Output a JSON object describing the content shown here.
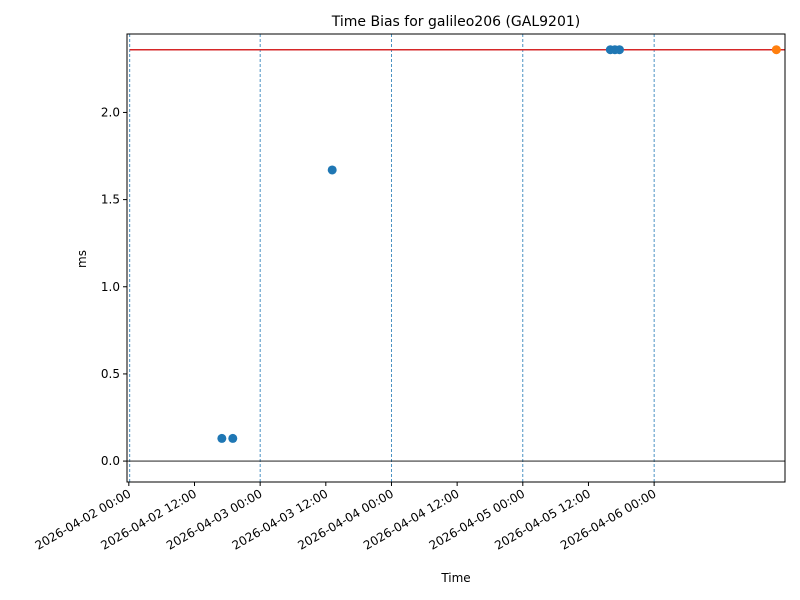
{
  "chart_data": {
    "type": "scatter",
    "title": "Time Bias for galileo206 (GAL9201)",
    "xlabel": "Time",
    "ylabel": "ms",
    "xlim": [
      "2026-04-01 23:40",
      "2026-04-06 23:55"
    ],
    "ylim": [
      -0.12,
      2.45
    ],
    "y_ticks": [
      0.0,
      0.5,
      1.0,
      1.5,
      2.0
    ],
    "x_ticks": [
      "2026-04-02 00:00",
      "2026-04-02 12:00",
      "2026-04-03 00:00",
      "2026-04-03 12:00",
      "2026-04-04 00:00",
      "2026-04-04 12:00",
      "2026-04-05 00:00",
      "2026-04-05 12:00",
      "2026-04-06 00:00"
    ],
    "vertical_dashed_lines": [
      "2026-04-02 00:10",
      "2026-04-03 00:00",
      "2026-04-04 00:00",
      "2026-04-05 00:00",
      "2026-04-06 00:00"
    ],
    "horizontal_lines": [
      {
        "y": 2.36,
        "color": "#d62728",
        "from": "2026-04-02 00:10",
        "to": "2026-04-06 23:55"
      },
      {
        "y": 0.0,
        "color": "#000000"
      }
    ],
    "grid": false,
    "series": [
      {
        "color": "#1f77b4",
        "points": [
          {
            "x": "2026-04-02 17:00",
            "y": 0.13
          },
          {
            "x": "2026-04-02 19:00",
            "y": 0.13
          },
          {
            "x": "2026-04-03 13:10",
            "y": 1.67
          },
          {
            "x": "2026-04-05 16:00",
            "y": 2.36
          },
          {
            "x": "2026-04-05 16:50",
            "y": 2.36
          },
          {
            "x": "2026-04-05 17:40",
            "y": 2.36
          }
        ]
      },
      {
        "color": "#ff7f0e",
        "points": [
          {
            "x": "2026-04-06 22:20",
            "y": 2.36
          }
        ]
      }
    ]
  }
}
